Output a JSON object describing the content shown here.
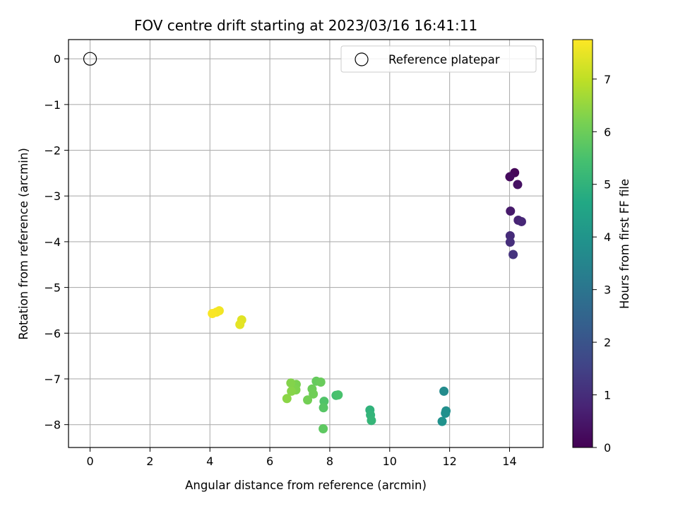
{
  "chart_data": {
    "type": "scatter",
    "title": "FOV centre drift starting at 2023/03/16 16:41:11",
    "xlabel": "Angular distance from reference (arcmin)",
    "ylabel": "Rotation from reference (arcmin)",
    "xlim": [
      -0.72,
      15.12
    ],
    "ylim": [
      -8.5,
      0.42
    ],
    "xticks": [
      0,
      2,
      4,
      6,
      8,
      10,
      12,
      14
    ],
    "yticks": [
      0,
      -1,
      -2,
      -3,
      -4,
      -5,
      -6,
      -7,
      -8
    ],
    "grid": true,
    "legend": {
      "placement": "top-right",
      "entries": [
        "Reference platepar"
      ]
    },
    "reference_point": {
      "x": 0,
      "y": 0
    },
    "colorbar": {
      "label": "Hours from first FF file",
      "range": [
        0,
        7.75
      ],
      "ticks": [
        0,
        1,
        2,
        3,
        4,
        5,
        6,
        7
      ],
      "colormap": "viridis"
    },
    "points": [
      {
        "x": 14.17,
        "y": -2.49,
        "t": 0.1
      },
      {
        "x": 14.01,
        "y": -2.58,
        "t": 0.2
      },
      {
        "x": 14.27,
        "y": -2.75,
        "t": 0.35
      },
      {
        "x": 14.03,
        "y": -3.33,
        "t": 0.55
      },
      {
        "x": 14.29,
        "y": -3.53,
        "t": 0.75
      },
      {
        "x": 14.4,
        "y": -3.56,
        "t": 0.85
      },
      {
        "x": 14.02,
        "y": -3.87,
        "t": 0.95
      },
      {
        "x": 14.02,
        "y": -4.01,
        "t": 1.05
      },
      {
        "x": 14.12,
        "y": -4.28,
        "t": 1.15
      },
      {
        "x": 11.81,
        "y": -7.27,
        "t": 3.7
      },
      {
        "x": 11.88,
        "y": -7.7,
        "t": 3.8
      },
      {
        "x": 11.86,
        "y": -7.75,
        "t": 3.85
      },
      {
        "x": 11.75,
        "y": -7.93,
        "t": 3.9
      },
      {
        "x": 9.34,
        "y": -7.68,
        "t": 5.0
      },
      {
        "x": 9.36,
        "y": -7.79,
        "t": 5.05
      },
      {
        "x": 9.39,
        "y": -7.91,
        "t": 5.1
      },
      {
        "x": 8.21,
        "y": -7.36,
        "t": 5.4
      },
      {
        "x": 8.28,
        "y": -7.35,
        "t": 5.5
      },
      {
        "x": 7.81,
        "y": -7.49,
        "t": 5.6
      },
      {
        "x": 7.79,
        "y": -7.63,
        "t": 5.7
      },
      {
        "x": 7.78,
        "y": -8.09,
        "t": 5.8
      },
      {
        "x": 7.55,
        "y": -7.05,
        "t": 5.9
      },
      {
        "x": 7.7,
        "y": -7.07,
        "t": 5.95
      },
      {
        "x": 7.41,
        "y": -7.22,
        "t": 6.0
      },
      {
        "x": 7.45,
        "y": -7.33,
        "t": 6.05
      },
      {
        "x": 7.26,
        "y": -7.46,
        "t": 6.1
      },
      {
        "x": 6.88,
        "y": -7.12,
        "t": 6.2
      },
      {
        "x": 6.87,
        "y": -7.24,
        "t": 6.25
      },
      {
        "x": 6.7,
        "y": -7.09,
        "t": 6.3
      },
      {
        "x": 6.72,
        "y": -7.27,
        "t": 6.35
      },
      {
        "x": 6.57,
        "y": -7.43,
        "t": 6.4
      },
      {
        "x": 5.06,
        "y": -5.71,
        "t": 7.4
      },
      {
        "x": 5.0,
        "y": -5.81,
        "t": 7.45
      },
      {
        "x": 4.31,
        "y": -5.51,
        "t": 7.6
      },
      {
        "x": 4.22,
        "y": -5.54,
        "t": 7.65
      },
      {
        "x": 4.08,
        "y": -5.57,
        "t": 7.7
      }
    ]
  }
}
